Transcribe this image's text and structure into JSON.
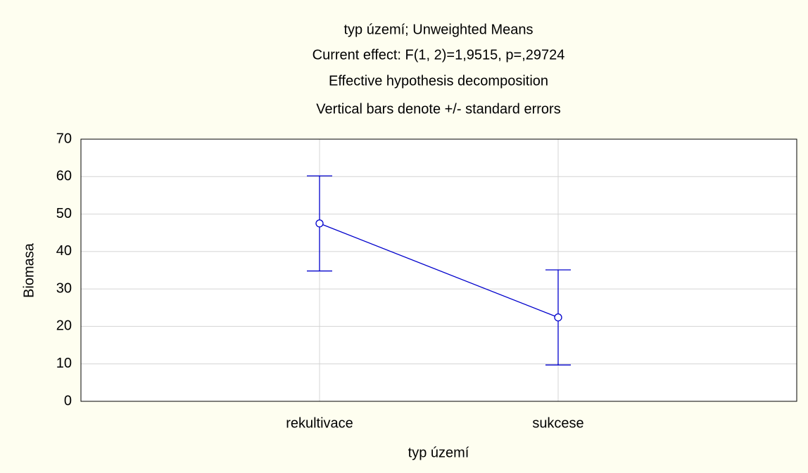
{
  "chart_data": {
    "type": "line",
    "title": [
      "typ území; Unweighted Means",
      "Current effect: F(1, 2)=1,9515, p=,29724",
      "Effective hypothesis decomposition",
      "Vertical bars denote +/- standard errors"
    ],
    "x_label": "typ území",
    "y_label": "Biomasa",
    "categories": [
      "rekultivace",
      "sukcese"
    ],
    "series": [
      {
        "color": "#0000cc",
        "values": [
          47.5,
          22.4
        ],
        "errors": [
          12.7,
          12.7
        ]
      }
    ],
    "ylim": [
      0,
      70
    ],
    "yticks": [
      0,
      10,
      20,
      30,
      40,
      50,
      60,
      70
    ],
    "grid": true
  }
}
